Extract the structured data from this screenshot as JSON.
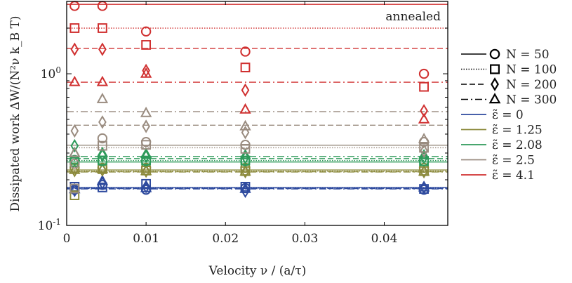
{
  "chart_data": {
    "type": "scatter",
    "title": "",
    "xlabel": "Velocity ν / (a/τ)",
    "ylabel": "Dissipated work ΔW/(N²ν k_B T)",
    "xlim": [
      0,
      0.048
    ],
    "ylim": [
      0.1,
      3.0
    ],
    "yscale": "log",
    "grid": false,
    "legend_position": "right",
    "annotation": "annealed",
    "x_ticks": [
      {
        "value": 0,
        "label": "0"
      },
      {
        "value": 0.01,
        "label": "0.01"
      },
      {
        "value": 0.02,
        "label": "0.02"
      },
      {
        "value": 0.03,
        "label": "0.03"
      },
      {
        "value": 0.04,
        "label": "0.04"
      }
    ],
    "y_ticks": [
      {
        "value": 1.0,
        "label": "10⁰",
        "base": "10",
        "exp": "0"
      },
      {
        "value": 0.1,
        "label": "10⁻¹",
        "base": "10",
        "exp": "-1"
      }
    ],
    "x": [
      0.001,
      0.0045,
      0.01,
      0.0225,
      0.045
    ],
    "markers": [
      {
        "N": 50,
        "shape": "circle",
        "dash": "solid",
        "label": "N = 50"
      },
      {
        "N": 100,
        "shape": "square",
        "dash": "dotted",
        "label": "N = 100"
      },
      {
        "N": 200,
        "shape": "diamond",
        "dash": "dashed",
        "label": "N = 200"
      },
      {
        "N": 300,
        "shape": "triangle",
        "dash": "dashdot",
        "label": "N = 300"
      }
    ],
    "energies": [
      {
        "label": "ε̃ = 0",
        "symbol": "ε̃",
        "value": "0",
        "color": "#2e4a9e"
      },
      {
        "label": "ε̃ = 1.25",
        "symbol": "ε̃",
        "value": "1.25",
        "color": "#8c8a3c"
      },
      {
        "label": "ε̃ = 2.08",
        "symbol": "ε̃",
        "value": "2.08",
        "color": "#2e9a5a"
      },
      {
        "label": "ε̃ = 2.5",
        "symbol": "ε̃",
        "value": "2.5",
        "color": "#9a8c80"
      },
      {
        "label": "ε̃ = 4.1",
        "symbol": "ε̃",
        "value": "4.1",
        "color": "#d03030"
      }
    ],
    "series": [
      {
        "eps": "0",
        "N": 50,
        "line": 0.178,
        "values": [
          0.172,
          0.185,
          0.172,
          0.176,
          0.172
        ]
      },
      {
        "eps": "0",
        "N": 100,
        "line": 0.176,
        "values": [
          0.18,
          0.178,
          0.188,
          0.18,
          0.174
        ]
      },
      {
        "eps": "0",
        "N": 200,
        "line": 0.175,
        "values": [
          0.17,
          0.19,
          0.18,
          0.168,
          0.178
        ]
      },
      {
        "eps": "0",
        "N": 300,
        "line": 0.174,
        "values": [
          0.173,
          0.196,
          0.176,
          0.174,
          0.178
        ]
      },
      {
        "eps": "1.25",
        "N": 50,
        "line": 0.232,
        "values": [
          0.24,
          0.24,
          0.24,
          0.24,
          0.24
        ]
      },
      {
        "eps": "1.25",
        "N": 100,
        "line": 0.228,
        "values": [
          0.158,
          0.235,
          0.23,
          0.228,
          0.228
        ]
      },
      {
        "eps": "1.25",
        "N": 200,
        "line": 0.226,
        "values": [
          0.23,
          0.232,
          0.228,
          0.226,
          0.226
        ]
      },
      {
        "eps": "1.25",
        "N": 300,
        "line": 0.225,
        "values": [
          0.232,
          0.236,
          0.228,
          0.226,
          0.226
        ]
      },
      {
        "eps": "2.08",
        "N": 50,
        "line": 0.262,
        "values": [
          0.27,
          0.265,
          0.265,
          0.265,
          0.265
        ]
      },
      {
        "eps": "2.08",
        "N": 100,
        "line": 0.268,
        "values": [
          0.262,
          0.268,
          0.268,
          0.268,
          0.265
        ]
      },
      {
        "eps": "2.08",
        "N": 200,
        "line": 0.276,
        "values": [
          0.335,
          0.29,
          0.285,
          0.28,
          0.28
        ]
      },
      {
        "eps": "2.08",
        "N": 300,
        "line": 0.285,
        "values": [
          0.3,
          0.3,
          0.295,
          0.29,
          0.29
        ]
      },
      {
        "eps": "2.5",
        "N": 50,
        "line": 0.338,
        "values": [
          0.255,
          0.375,
          0.355,
          0.34,
          0.355
        ]
      },
      {
        "eps": "2.5",
        "N": 100,
        "line": 0.325,
        "values": [
          0.175,
          0.335,
          0.34,
          0.32,
          0.325
        ]
      },
      {
        "eps": "2.5",
        "N": 200,
        "line": 0.458,
        "values": [
          0.42,
          0.48,
          0.45,
          0.41,
          0.31
        ]
      },
      {
        "eps": "2.5",
        "N": 300,
        "line": 0.563,
        "values": [
          0.3,
          0.68,
          0.55,
          0.45,
          0.37
        ]
      },
      {
        "eps": "4.1",
        "N": 50,
        "line": 2.87,
        "values": [
          2.8,
          2.8,
          1.9,
          1.4,
          1.0
        ]
      },
      {
        "eps": "4.1",
        "N": 100,
        "line": 2.0,
        "values": [
          2.0,
          2.0,
          1.55,
          1.1,
          0.82
        ]
      },
      {
        "eps": "4.1",
        "N": 200,
        "line": 1.47,
        "values": [
          1.45,
          1.45,
          1.05,
          0.78,
          0.57
        ]
      },
      {
        "eps": "4.1",
        "N": 300,
        "line": 0.88,
        "values": [
          0.88,
          0.88,
          1.0,
          0.58,
          0.5
        ]
      }
    ]
  }
}
